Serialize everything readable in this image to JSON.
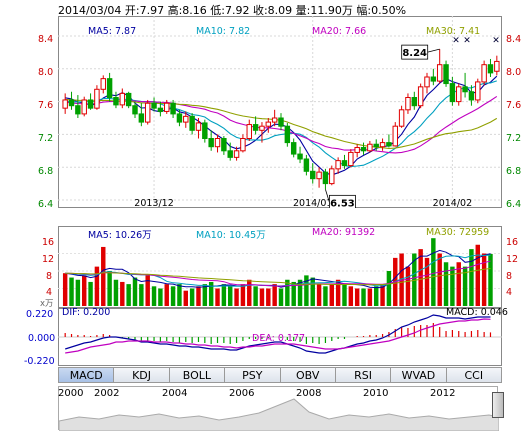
{
  "header": {
    "text": "2014/03/04 开:7.97 高:8.16 低:7.92 收:8.09 量:11.90万 幅:0.50%"
  },
  "main_legend": {
    "ma5": "MA5: 7.87",
    "ma10": "MA10: 7.82",
    "ma20": "MA20: 7.66",
    "ma30": "MA30: 7.41"
  },
  "vol_legend": {
    "ma5": "MA5: 10.26万",
    "ma10": "MA10: 10.45万",
    "ma20": "MA20: 91392",
    "ma30": "MA30: 72959"
  },
  "macd_legend": {
    "unit": "x万",
    "dif": "DIF: 0.200",
    "dea": "DEA: 0.177",
    "macd": "MACD: 0.046"
  },
  "callouts": {
    "high": "8.24",
    "low": "6.53"
  },
  "tabs": [
    "MACD",
    "KDJ",
    "BOLL",
    "PSY",
    "OBV",
    "RSI",
    "WVAD",
    "CCI"
  ],
  "active_tab": "MACD",
  "timeline_years": [
    "2000",
    "2002",
    "2004",
    "2006",
    "2008",
    "2010",
    "2012"
  ],
  "colors": {
    "up": "#e00000",
    "down": "#00a000",
    "ma5": "#0000a0",
    "ma10": "#00a0c0",
    "ma20": "#c000c0",
    "ma30": "#90a000"
  },
  "chart_data": [
    {
      "type": "candlestick",
      "x_ticks": [
        "2013/12",
        "2014/01",
        "2014/02"
      ],
      "y_ticks": [
        "8.4",
        "8.0",
        "7.6",
        "7.2",
        "6.8",
        "6.4"
      ],
      "ylim": [
        6.4,
        8.4
      ],
      "annotations": [
        {
          "label": "8.24",
          "value": 8.24
        },
        {
          "label": "6.53",
          "value": 6.53
        }
      ],
      "candles": [
        {
          "o": 7.52,
          "h": 7.7,
          "l": 7.45,
          "c": 7.62
        },
        {
          "o": 7.62,
          "h": 7.72,
          "l": 7.5,
          "c": 7.55
        },
        {
          "o": 7.55,
          "h": 7.68,
          "l": 7.4,
          "c": 7.45
        },
        {
          "o": 7.45,
          "h": 7.66,
          "l": 7.42,
          "c": 7.62
        },
        {
          "o": 7.62,
          "h": 7.7,
          "l": 7.5,
          "c": 7.52
        },
        {
          "o": 7.52,
          "h": 7.8,
          "l": 7.5,
          "c": 7.75
        },
        {
          "o": 7.75,
          "h": 7.92,
          "l": 7.7,
          "c": 7.88
        },
        {
          "o": 7.88,
          "h": 7.95,
          "l": 7.6,
          "c": 7.65
        },
        {
          "o": 7.65,
          "h": 7.72,
          "l": 7.52,
          "c": 7.56
        },
        {
          "o": 7.56,
          "h": 7.76,
          "l": 7.52,
          "c": 7.7
        },
        {
          "o": 7.7,
          "h": 7.72,
          "l": 7.52,
          "c": 7.55
        },
        {
          "o": 7.55,
          "h": 7.6,
          "l": 7.4,
          "c": 7.45
        },
        {
          "o": 7.45,
          "h": 7.58,
          "l": 7.3,
          "c": 7.35
        },
        {
          "o": 7.35,
          "h": 7.62,
          "l": 7.32,
          "c": 7.58
        },
        {
          "o": 7.58,
          "h": 7.65,
          "l": 7.48,
          "c": 7.52
        },
        {
          "o": 7.52,
          "h": 7.6,
          "l": 7.42,
          "c": 7.48
        },
        {
          "o": 7.48,
          "h": 7.62,
          "l": 7.45,
          "c": 7.58
        },
        {
          "o": 7.58,
          "h": 7.62,
          "l": 7.4,
          "c": 7.45
        },
        {
          "o": 7.45,
          "h": 7.5,
          "l": 7.3,
          "c": 7.35
        },
        {
          "o": 7.35,
          "h": 7.48,
          "l": 7.28,
          "c": 7.42
        },
        {
          "o": 7.42,
          "h": 7.46,
          "l": 7.2,
          "c": 7.25
        },
        {
          "o": 7.25,
          "h": 7.4,
          "l": 7.15,
          "c": 7.34
        },
        {
          "o": 7.34,
          "h": 7.38,
          "l": 7.1,
          "c": 7.15
        },
        {
          "o": 7.15,
          "h": 7.25,
          "l": 7.0,
          "c": 7.05
        },
        {
          "o": 7.05,
          "h": 7.2,
          "l": 6.98,
          "c": 7.15
        },
        {
          "o": 7.15,
          "h": 7.18,
          "l": 6.95,
          "c": 7.0
        },
        {
          "o": 7.0,
          "h": 7.1,
          "l": 6.88,
          "c": 6.92
        },
        {
          "o": 6.92,
          "h": 7.05,
          "l": 6.88,
          "c": 7.0
        },
        {
          "o": 7.0,
          "h": 7.2,
          "l": 6.98,
          "c": 7.15
        },
        {
          "o": 7.15,
          "h": 7.38,
          "l": 7.12,
          "c": 7.32
        },
        {
          "o": 7.32,
          "h": 7.42,
          "l": 7.2,
          "c": 7.25
        },
        {
          "o": 7.25,
          "h": 7.35,
          "l": 7.1,
          "c": 7.3
        },
        {
          "o": 7.3,
          "h": 7.4,
          "l": 7.22,
          "c": 7.35
        },
        {
          "o": 7.35,
          "h": 7.5,
          "l": 7.3,
          "c": 7.4
        },
        {
          "o": 7.4,
          "h": 7.46,
          "l": 7.25,
          "c": 7.3
        },
        {
          "o": 7.3,
          "h": 7.34,
          "l": 7.05,
          "c": 7.1
        },
        {
          "o": 7.1,
          "h": 7.15,
          "l": 6.92,
          "c": 6.96
        },
        {
          "o": 6.96,
          "h": 7.05,
          "l": 6.85,
          "c": 6.9
        },
        {
          "o": 6.9,
          "h": 6.95,
          "l": 6.7,
          "c": 6.75
        },
        {
          "o": 6.75,
          "h": 6.85,
          "l": 6.6,
          "c": 6.66
        },
        {
          "o": 6.66,
          "h": 6.8,
          "l": 6.55,
          "c": 6.74
        },
        {
          "o": 6.74,
          "h": 6.78,
          "l": 6.53,
          "c": 6.6
        },
        {
          "o": 6.6,
          "h": 6.82,
          "l": 6.58,
          "c": 6.78
        },
        {
          "o": 6.78,
          "h": 6.92,
          "l": 6.72,
          "c": 6.88
        },
        {
          "o": 6.88,
          "h": 6.95,
          "l": 6.78,
          "c": 6.82
        },
        {
          "o": 6.82,
          "h": 7.02,
          "l": 6.8,
          "c": 6.98
        },
        {
          "o": 6.98,
          "h": 7.08,
          "l": 6.92,
          "c": 7.04
        },
        {
          "o": 7.04,
          "h": 7.1,
          "l": 6.95,
          "c": 7.0
        },
        {
          "o": 7.0,
          "h": 7.12,
          "l": 6.98,
          "c": 7.08
        },
        {
          "o": 7.08,
          "h": 7.14,
          "l": 7.0,
          "c": 7.05
        },
        {
          "o": 7.05,
          "h": 7.15,
          "l": 7.0,
          "c": 7.1
        },
        {
          "o": 7.1,
          "h": 7.2,
          "l": 7.04,
          "c": 7.06
        },
        {
          "o": 7.06,
          "h": 7.35,
          "l": 7.05,
          "c": 7.3
        },
        {
          "o": 7.3,
          "h": 7.55,
          "l": 7.28,
          "c": 7.5
        },
        {
          "o": 7.5,
          "h": 7.7,
          "l": 7.45,
          "c": 7.65
        },
        {
          "o": 7.65,
          "h": 7.72,
          "l": 7.5,
          "c": 7.55
        },
        {
          "o": 7.55,
          "h": 7.82,
          "l": 7.52,
          "c": 7.78
        },
        {
          "o": 7.78,
          "h": 7.95,
          "l": 7.7,
          "c": 7.9
        },
        {
          "o": 7.9,
          "h": 8.0,
          "l": 7.8,
          "c": 7.85
        },
        {
          "o": 7.85,
          "h": 8.24,
          "l": 7.82,
          "c": 8.05
        },
        {
          "o": 8.05,
          "h": 8.1,
          "l": 7.78,
          "c": 7.82
        },
        {
          "o": 7.82,
          "h": 7.9,
          "l": 7.55,
          "c": 7.6
        },
        {
          "o": 7.6,
          "h": 7.82,
          "l": 7.55,
          "c": 7.78
        },
        {
          "o": 7.78,
          "h": 7.95,
          "l": 7.65,
          "c": 7.72
        },
        {
          "o": 7.72,
          "h": 7.8,
          "l": 7.55,
          "c": 7.62
        },
        {
          "o": 7.62,
          "h": 7.88,
          "l": 7.58,
          "c": 7.84
        },
        {
          "o": 7.84,
          "h": 8.1,
          "l": 7.8,
          "c": 8.05
        },
        {
          "o": 8.05,
          "h": 8.12,
          "l": 7.9,
          "c": 7.95
        },
        {
          "o": 7.97,
          "h": 8.16,
          "l": 7.92,
          "c": 8.09
        }
      ]
    },
    {
      "type": "bar",
      "y_ticks": [
        "16",
        "12",
        "8",
        "4"
      ],
      "ylim": [
        0,
        16
      ],
      "volumes": [
        7.5,
        6.5,
        6,
        7,
        5.5,
        9,
        13.5,
        8,
        6,
        5.5,
        5,
        6.5,
        5,
        7,
        4.5,
        4,
        5,
        4.5,
        5,
        3.5,
        4,
        4.5,
        5,
        5.5,
        4,
        5,
        4.5,
        4,
        5,
        6,
        4.5,
        4,
        4,
        5,
        4,
        6,
        5.5,
        6,
        7,
        6.5,
        5,
        4.5,
        5,
        6,
        5,
        4.5,
        4,
        4,
        4,
        4.5,
        5,
        8,
        11,
        12,
        9,
        12,
        13,
        11,
        15.5,
        12,
        10,
        9,
        10,
        9,
        13,
        14,
        12,
        11.9
      ],
      "direction": [
        "up",
        "down",
        "down",
        "up",
        "down",
        "up",
        "up",
        "down",
        "down",
        "up",
        "down",
        "down",
        "down",
        "up",
        "down",
        "down",
        "up",
        "down",
        "down",
        "up",
        "down",
        "up",
        "down",
        "down",
        "up",
        "down",
        "down",
        "up",
        "up",
        "up",
        "down",
        "up",
        "up",
        "up",
        "down",
        "down",
        "down",
        "down",
        "down",
        "down",
        "up",
        "down",
        "up",
        "up",
        "down",
        "up",
        "up",
        "down",
        "up",
        "down",
        "up",
        "down",
        "up",
        "up",
        "up",
        "down",
        "up",
        "up",
        "down",
        "up",
        "down",
        "down",
        "up",
        "down",
        "down",
        "up",
        "up",
        "down",
        "up"
      ]
    },
    {
      "type": "bar",
      "y_ticks": [
        "0.220",
        "0.000",
        "-0.220"
      ],
      "ylim": [
        -0.26,
        0.26
      ],
      "macd": [
        0.04,
        0.03,
        0.02,
        0.02,
        0.01,
        0.02,
        0.03,
        0.02,
        0.0,
        -0.01,
        -0.02,
        -0.03,
        -0.05,
        -0.04,
        -0.04,
        -0.05,
        -0.04,
        -0.05,
        -0.06,
        -0.05,
        -0.06,
        -0.05,
        -0.06,
        -0.07,
        -0.06,
        -0.06,
        -0.07,
        -0.06,
        -0.04,
        -0.02,
        -0.02,
        -0.02,
        -0.01,
        0.0,
        -0.01,
        -0.03,
        -0.04,
        -0.05,
        -0.07,
        -0.06,
        -0.07,
        -0.06,
        -0.04,
        -0.02,
        -0.02,
        0.0,
        0.01,
        0.01,
        0.02,
        0.02,
        0.03,
        0.05,
        0.08,
        0.1,
        0.09,
        0.11,
        0.12,
        0.12,
        0.14,
        0.1,
        0.06,
        0.07,
        0.06,
        0.05,
        0.06,
        0.07,
        0.05,
        0.046
      ],
      "dif": [
        -0.12,
        -0.1,
        -0.08,
        -0.06,
        -0.05,
        -0.03,
        -0.01,
        0.0,
        0.0,
        -0.01,
        -0.02,
        -0.03,
        -0.05,
        -0.05,
        -0.06,
        -0.07,
        -0.07,
        -0.08,
        -0.09,
        -0.09,
        -0.1,
        -0.1,
        -0.11,
        -0.12,
        -0.12,
        -0.12,
        -0.13,
        -0.13,
        -0.11,
        -0.09,
        -0.08,
        -0.07,
        -0.06,
        -0.05,
        -0.05,
        -0.07,
        -0.09,
        -0.11,
        -0.14,
        -0.15,
        -0.16,
        -0.16,
        -0.14,
        -0.12,
        -0.11,
        -0.09,
        -0.07,
        -0.06,
        -0.04,
        -0.03,
        -0.01,
        0.02,
        0.06,
        0.1,
        0.12,
        0.15,
        0.17,
        0.19,
        0.22,
        0.21,
        0.19,
        0.19,
        0.19,
        0.18,
        0.19,
        0.2,
        0.2,
        0.2
      ],
      "dea": [
        -0.16,
        -0.15,
        -0.14,
        -0.12,
        -0.1,
        -0.09,
        -0.08,
        -0.07,
        -0.05,
        -0.05,
        -0.04,
        -0.04,
        -0.04,
        -0.04,
        -0.05,
        -0.05,
        -0.05,
        -0.06,
        -0.06,
        -0.07,
        -0.07,
        -0.08,
        -0.08,
        -0.09,
        -0.09,
        -0.1,
        -0.1,
        -0.11,
        -0.1,
        -0.1,
        -0.09,
        -0.09,
        -0.08,
        -0.07,
        -0.07,
        -0.07,
        -0.07,
        -0.08,
        -0.09,
        -0.1,
        -0.11,
        -0.12,
        -0.12,
        -0.12,
        -0.11,
        -0.1,
        -0.09,
        -0.08,
        -0.07,
        -0.06,
        -0.05,
        -0.04,
        -0.02,
        0.0,
        0.02,
        0.04,
        0.07,
        0.09,
        0.11,
        0.13,
        0.14,
        0.15,
        0.16,
        0.16,
        0.17,
        0.17,
        0.18,
        0.177
      ]
    }
  ]
}
